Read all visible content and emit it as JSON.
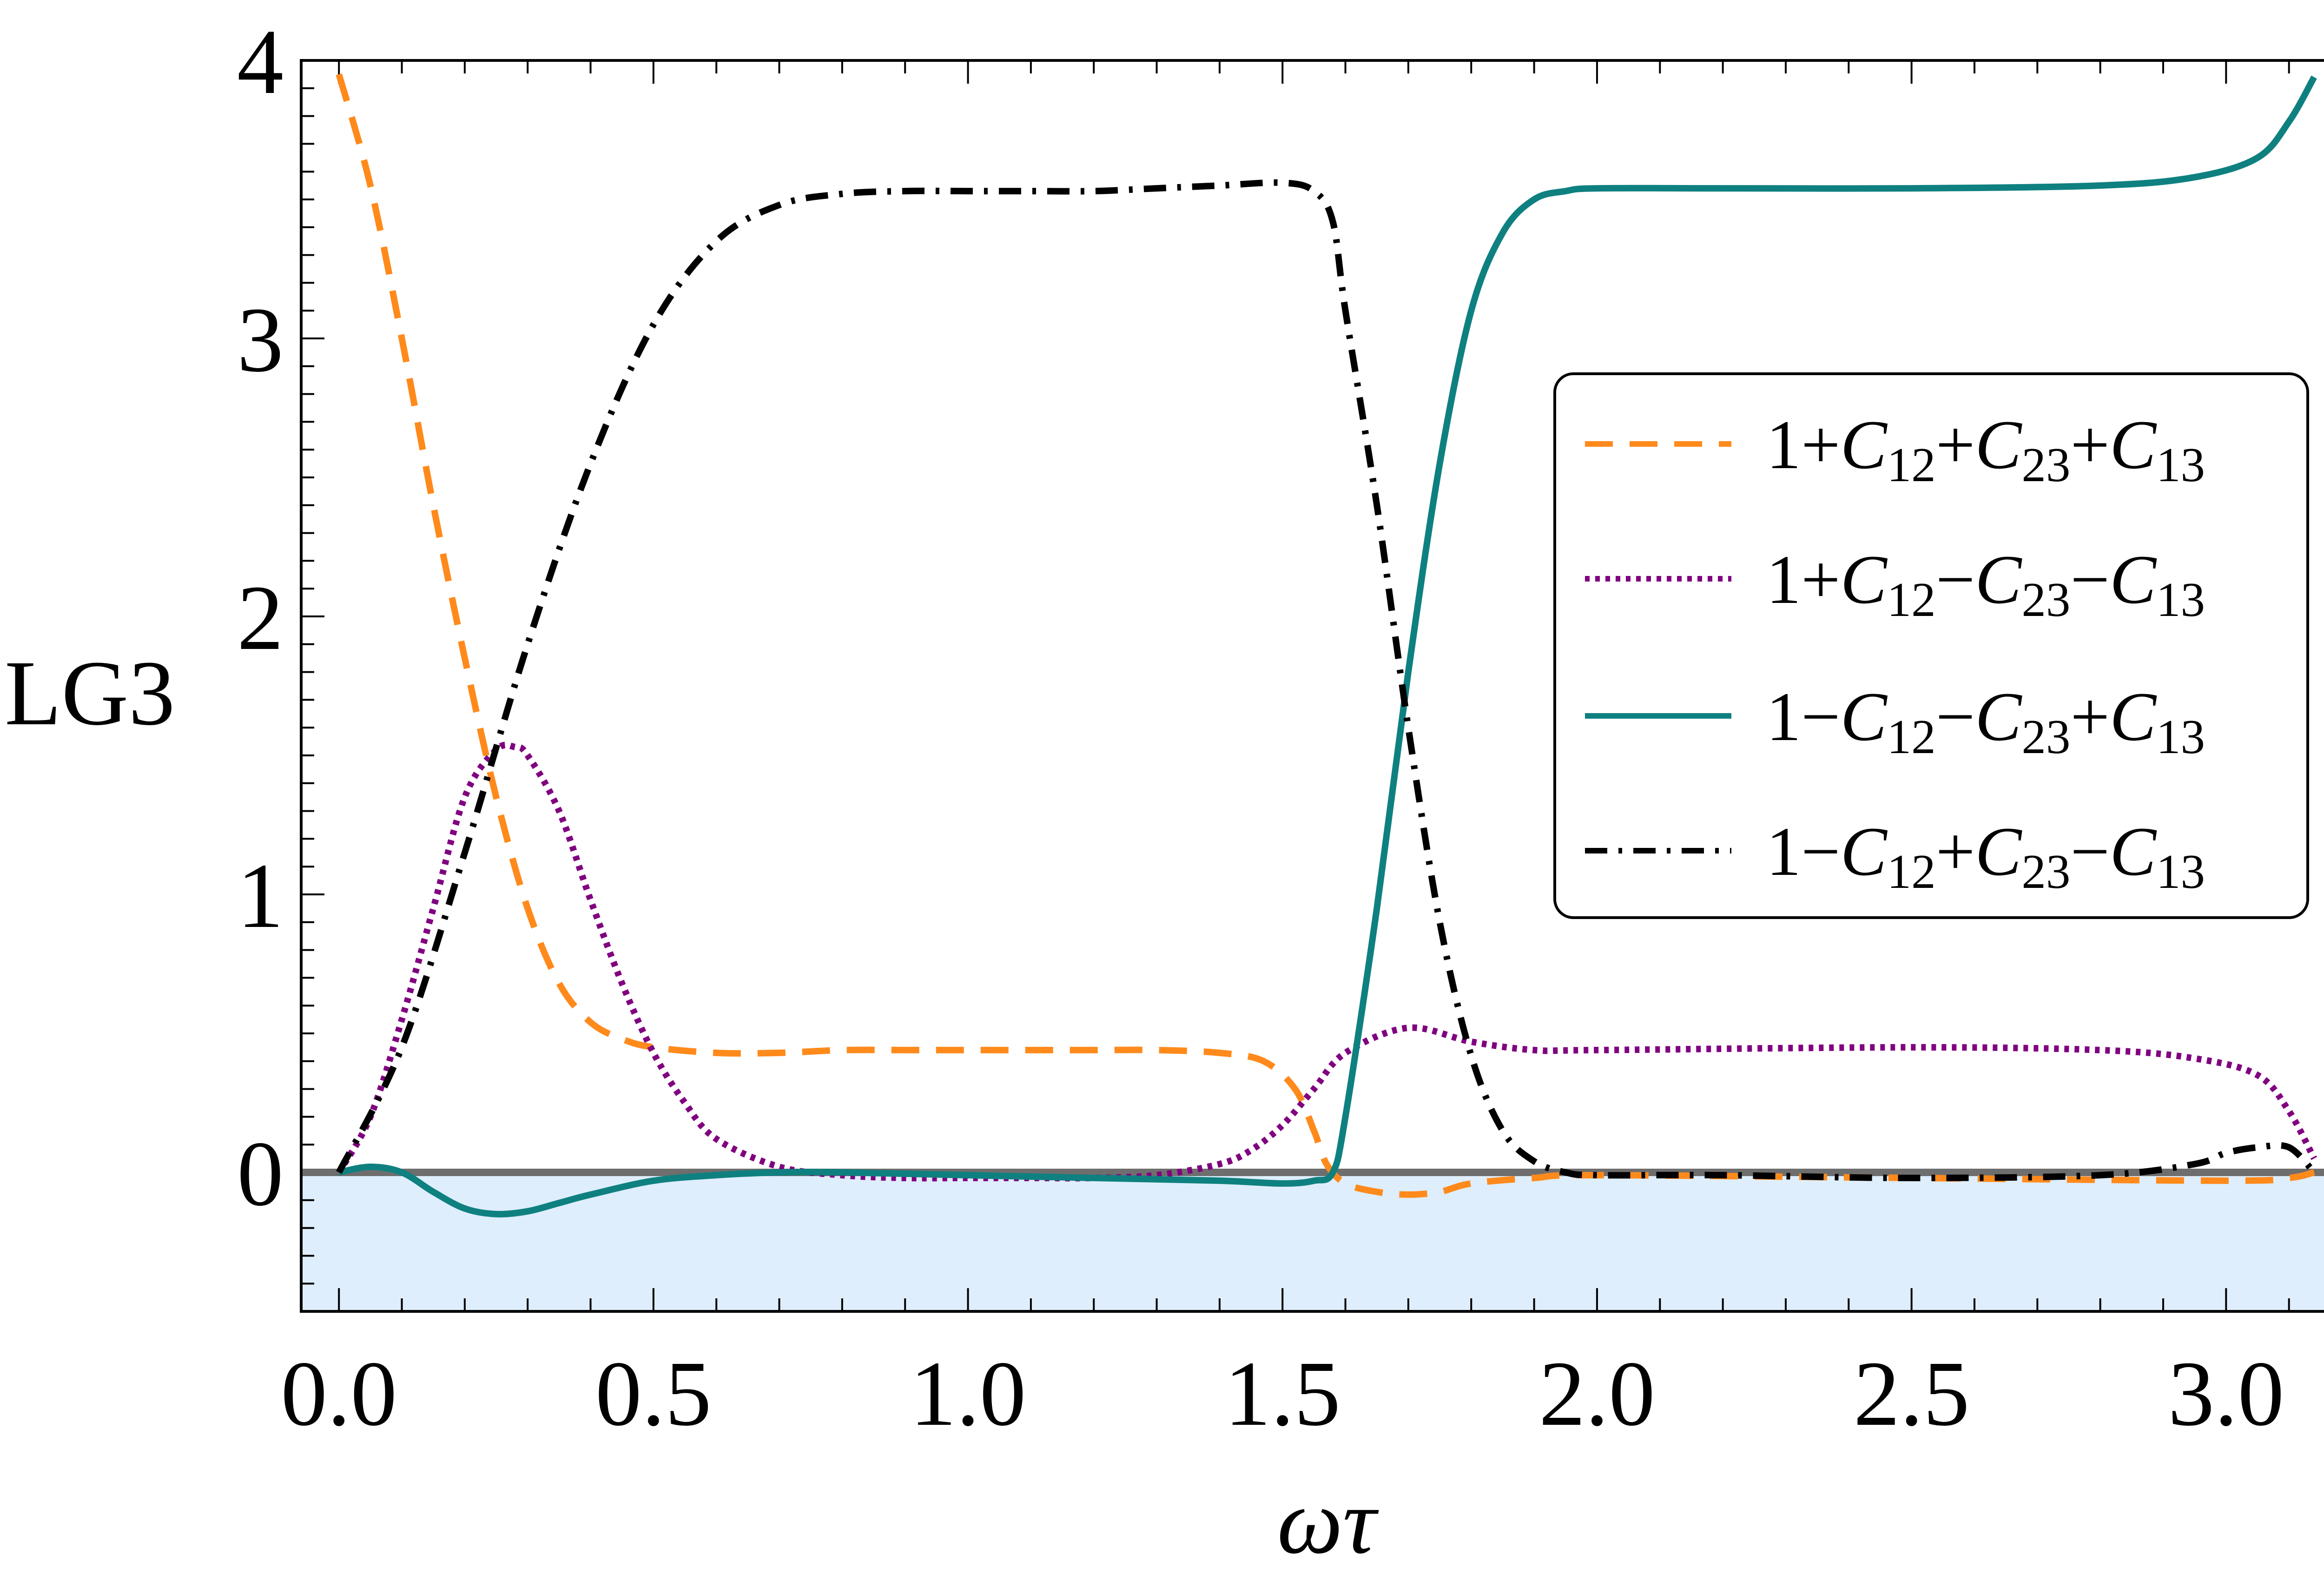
{
  "chart_data": {
    "type": "line",
    "title": "",
    "xlabel": "ωτ",
    "ylabel": "LG3",
    "xlim": [
      -0.06,
      3.2
    ],
    "ylim": [
      -0.5,
      4.0
    ],
    "xticks": [
      0.0,
      0.5,
      1.0,
      1.5,
      2.0,
      2.5,
      3.0
    ],
    "xtick_labels": [
      "0.0",
      "0.5",
      "1.0",
      "1.5",
      "2.0",
      "2.5",
      "3.0"
    ],
    "yticks": [
      0,
      1,
      2,
      3,
      4
    ],
    "ytick_labels": [
      "0",
      "1",
      "2",
      "3",
      "4"
    ],
    "shaded_region": {
      "y_from": -0.5,
      "y_to": 0,
      "color": "#deeefc"
    },
    "zero_line_color": "#6e6e6e",
    "legend_position": "center-right",
    "series": [
      {
        "name": "1+C12+C23+C13",
        "legend": [
          "1+",
          "C",
          "12",
          "+",
          "C",
          "23",
          "+",
          "C",
          "13"
        ],
        "color": "#ff8a1c",
        "style": "dashed",
        "x": [
          0,
          0.05,
          0.1,
          0.15,
          0.2,
          0.25,
          0.3,
          0.35,
          0.4,
          0.45,
          0.5,
          0.6,
          0.7,
          0.8,
          0.9,
          1.0,
          1.1,
          1.2,
          1.3,
          1.4,
          1.47,
          1.52,
          1.55,
          1.57,
          1.6,
          1.65,
          1.7,
          1.75,
          1.8,
          1.9,
          2.0,
          2.5,
          3.0,
          3.1,
          3.14
        ],
        "y": [
          3.95,
          3.55,
          3.0,
          2.4,
          1.85,
          1.35,
          0.95,
          0.68,
          0.54,
          0.48,
          0.45,
          0.43,
          0.43,
          0.44,
          0.44,
          0.44,
          0.44,
          0.44,
          0.44,
          0.43,
          0.4,
          0.3,
          0.15,
          0.03,
          -0.04,
          -0.07,
          -0.08,
          -0.07,
          -0.04,
          -0.02,
          -0.01,
          -0.02,
          -0.03,
          -0.02,
          0.0
        ]
      },
      {
        "name": "1+C12−C23−C13",
        "legend": [
          "1+",
          "C",
          "12",
          "−",
          "C",
          "23",
          "−",
          "C",
          "13"
        ],
        "color": "#800080",
        "style": "dotted",
        "x": [
          0,
          0.05,
          0.1,
          0.15,
          0.2,
          0.25,
          0.28,
          0.3,
          0.35,
          0.4,
          0.45,
          0.5,
          0.55,
          0.6,
          0.7,
          0.8,
          0.9,
          1.0,
          1.1,
          1.2,
          1.3,
          1.4,
          1.45,
          1.5,
          1.55,
          1.6,
          1.7,
          1.8,
          1.9,
          2.0,
          2.5,
          2.8,
          2.95,
          3.05,
          3.1,
          3.14
        ],
        "y": [
          0,
          0.2,
          0.55,
          0.95,
          1.35,
          1.52,
          1.53,
          1.5,
          1.3,
          0.98,
          0.68,
          0.43,
          0.25,
          0.12,
          0.02,
          -0.01,
          -0.02,
          -0.02,
          -0.02,
          -0.02,
          -0.01,
          0.03,
          0.08,
          0.17,
          0.3,
          0.43,
          0.52,
          0.47,
          0.44,
          0.44,
          0.45,
          0.44,
          0.41,
          0.35,
          0.22,
          0.05
        ]
      },
      {
        "name": "1−C12−C23+C13",
        "legend": [
          "1−",
          "C",
          "12",
          "−",
          "C",
          "23",
          "+",
          "C",
          "13"
        ],
        "color": "#0f8080",
        "style": "solid",
        "x": [
          0,
          0.05,
          0.1,
          0.15,
          0.2,
          0.25,
          0.3,
          0.35,
          0.4,
          0.5,
          0.6,
          0.7,
          0.8,
          1.0,
          1.2,
          1.4,
          1.5,
          1.55,
          1.58,
          1.6,
          1.65,
          1.7,
          1.75,
          1.8,
          1.85,
          1.9,
          1.95,
          2.0,
          2.2,
          2.5,
          2.8,
          2.95,
          3.05,
          3.1,
          3.14
        ],
        "y": [
          0,
          0.02,
          0.0,
          -0.07,
          -0.13,
          -0.15,
          -0.14,
          -0.11,
          -0.08,
          -0.03,
          -0.01,
          0.0,
          0.0,
          -0.01,
          -0.02,
          -0.03,
          -0.04,
          -0.03,
          0.0,
          0.2,
          0.95,
          1.8,
          2.55,
          3.1,
          3.38,
          3.5,
          3.53,
          3.54,
          3.54,
          3.54,
          3.55,
          3.58,
          3.65,
          3.78,
          3.94
        ]
      },
      {
        "name": "1−C12+C23−C13",
        "legend": [
          "1−",
          "C",
          "12",
          "+",
          "C",
          "23",
          "−",
          "C",
          "13"
        ],
        "color": "#000000",
        "style": "dashdot",
        "x": [
          0,
          0.1,
          0.2,
          0.3,
          0.4,
          0.5,
          0.6,
          0.7,
          0.8,
          0.9,
          1.0,
          1.1,
          1.2,
          1.3,
          1.4,
          1.5,
          1.55,
          1.58,
          1.6,
          1.65,
          1.7,
          1.75,
          1.8,
          1.85,
          1.9,
          1.95,
          2.0,
          2.2,
          2.5,
          2.8,
          2.95,
          3.0,
          3.05,
          3.1,
          3.14
        ],
        "y": [
          0,
          0.45,
          1.15,
          1.9,
          2.55,
          3.05,
          3.35,
          3.48,
          3.52,
          3.53,
          3.53,
          3.53,
          3.53,
          3.54,
          3.55,
          3.56,
          3.53,
          3.42,
          3.1,
          2.4,
          1.6,
          0.9,
          0.42,
          0.15,
          0.04,
          0.0,
          -0.01,
          -0.01,
          -0.02,
          -0.01,
          0.03,
          0.07,
          0.09,
          0.09,
          0.0
        ]
      }
    ]
  }
}
